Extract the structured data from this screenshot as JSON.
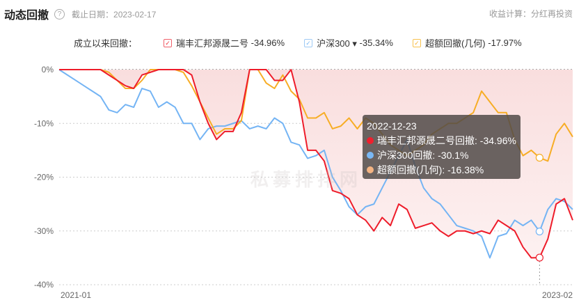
{
  "header": {
    "title": "动态回撤",
    "help_icon": "question-circle-icon",
    "as_of": "截止日期：2023-02-17",
    "calc_mode": "收益计算：分红再投资"
  },
  "legend": {
    "label": "成立以来回撤：",
    "items": [
      {
        "name": "瑞丰汇邦源晟二号",
        "value": "-34.96%",
        "color": "#f0303c",
        "checked": true
      },
      {
        "name": "沪深300 ▾",
        "value": "-35.34%",
        "color": "#7ab8f5",
        "checked": true
      },
      {
        "name": "超额回撤(几何)",
        "value": "-17.97%",
        "color": "#f7b32e",
        "checked": true
      }
    ]
  },
  "watermark": "私募排排网",
  "tooltip": {
    "date": "2022-12-23",
    "rows": [
      {
        "text": "瑞丰汇邦源晟二号回撤: -34.96%",
        "color": "#f01f2d"
      },
      {
        "text": "沪深300回撤: -30.1%",
        "color": "#7ab8f5"
      },
      {
        "text": "超额回撤(几何): -16.38%",
        "color": "#f4b483"
      }
    ]
  },
  "chart_data": {
    "type": "line",
    "x_labels": [
      "2021-01",
      "2023-02"
    ],
    "y_ticks": [
      "0%",
      "-10%",
      "-20%",
      "-30%",
      "-40%"
    ],
    "ylim": [
      -40,
      0
    ],
    "grid": true,
    "highlight_index": 58,
    "series": [
      {
        "name": "瑞丰汇邦源晟二号",
        "color": "#ee1c2a",
        "fill": true,
        "values": [
          0,
          0,
          0,
          0,
          0,
          0,
          -1,
          -2,
          -3,
          -3.5,
          -1,
          -0.5,
          0,
          0,
          0,
          0,
          -1,
          -6,
          -10,
          -13,
          -11.5,
          -11.5,
          -8,
          0,
          0,
          0,
          -2,
          -2,
          0,
          -6,
          -15,
          -15,
          -17,
          -22.5,
          -23,
          -24,
          -27,
          -28,
          -30,
          -27.5,
          -29,
          -25,
          -26,
          -29.5,
          -29,
          -28.5,
          -30,
          -31,
          -30,
          -30,
          -30.5,
          -30,
          -30.5,
          -28,
          -29,
          -30,
          -33,
          -35,
          -34.96,
          -31.5,
          -25,
          -24,
          -28
        ]
      },
      {
        "name": "沪深300",
        "color": "#74b4f4",
        "values": [
          0,
          -1,
          -2,
          -3,
          -4,
          -5,
          -7.5,
          -8,
          -6.5,
          -7,
          -3.5,
          -4,
          -7,
          -6,
          -7,
          -10,
          -10,
          -13,
          -11,
          -10.5,
          -10.5,
          -10,
          -9.5,
          -11,
          -10.5,
          -11,
          -9,
          -10,
          -13.5,
          -14,
          -16.5,
          -16,
          -15,
          -20,
          -22.5,
          -25.5,
          -27,
          -25.5,
          -25,
          -22,
          -19,
          -16,
          -13,
          -18,
          -22,
          -24,
          -25,
          -27,
          -29,
          -29.5,
          -30,
          -31,
          -35,
          -31,
          -30.5,
          -28,
          -29,
          -28,
          -30.1,
          -26,
          -24,
          -24.5,
          -26
        ]
      },
      {
        "name": "超额回撤(几何)",
        "color": "#f7ad25",
        "values": [
          0,
          0,
          0,
          0,
          0,
          0,
          -0.5,
          -2,
          -3.5,
          -3.5,
          -2,
          0,
          0,
          0,
          0,
          -0.5,
          -3,
          -6,
          -9,
          -12,
          -11,
          -11,
          -9.5,
          0,
          0,
          -2.5,
          -3.5,
          -1,
          -4,
          -5.5,
          -9,
          -9,
          -8,
          -11,
          -10.5,
          -9,
          -11,
          -9,
          -10,
          -12,
          -14,
          -15,
          -16,
          -15,
          -14,
          -12,
          -11,
          -10,
          -10,
          -9,
          -8,
          -4,
          -6,
          -8,
          -8,
          -13,
          -16,
          -15,
          -16.38,
          -17,
          -12,
          -10,
          -12.5
        ]
      }
    ]
  }
}
